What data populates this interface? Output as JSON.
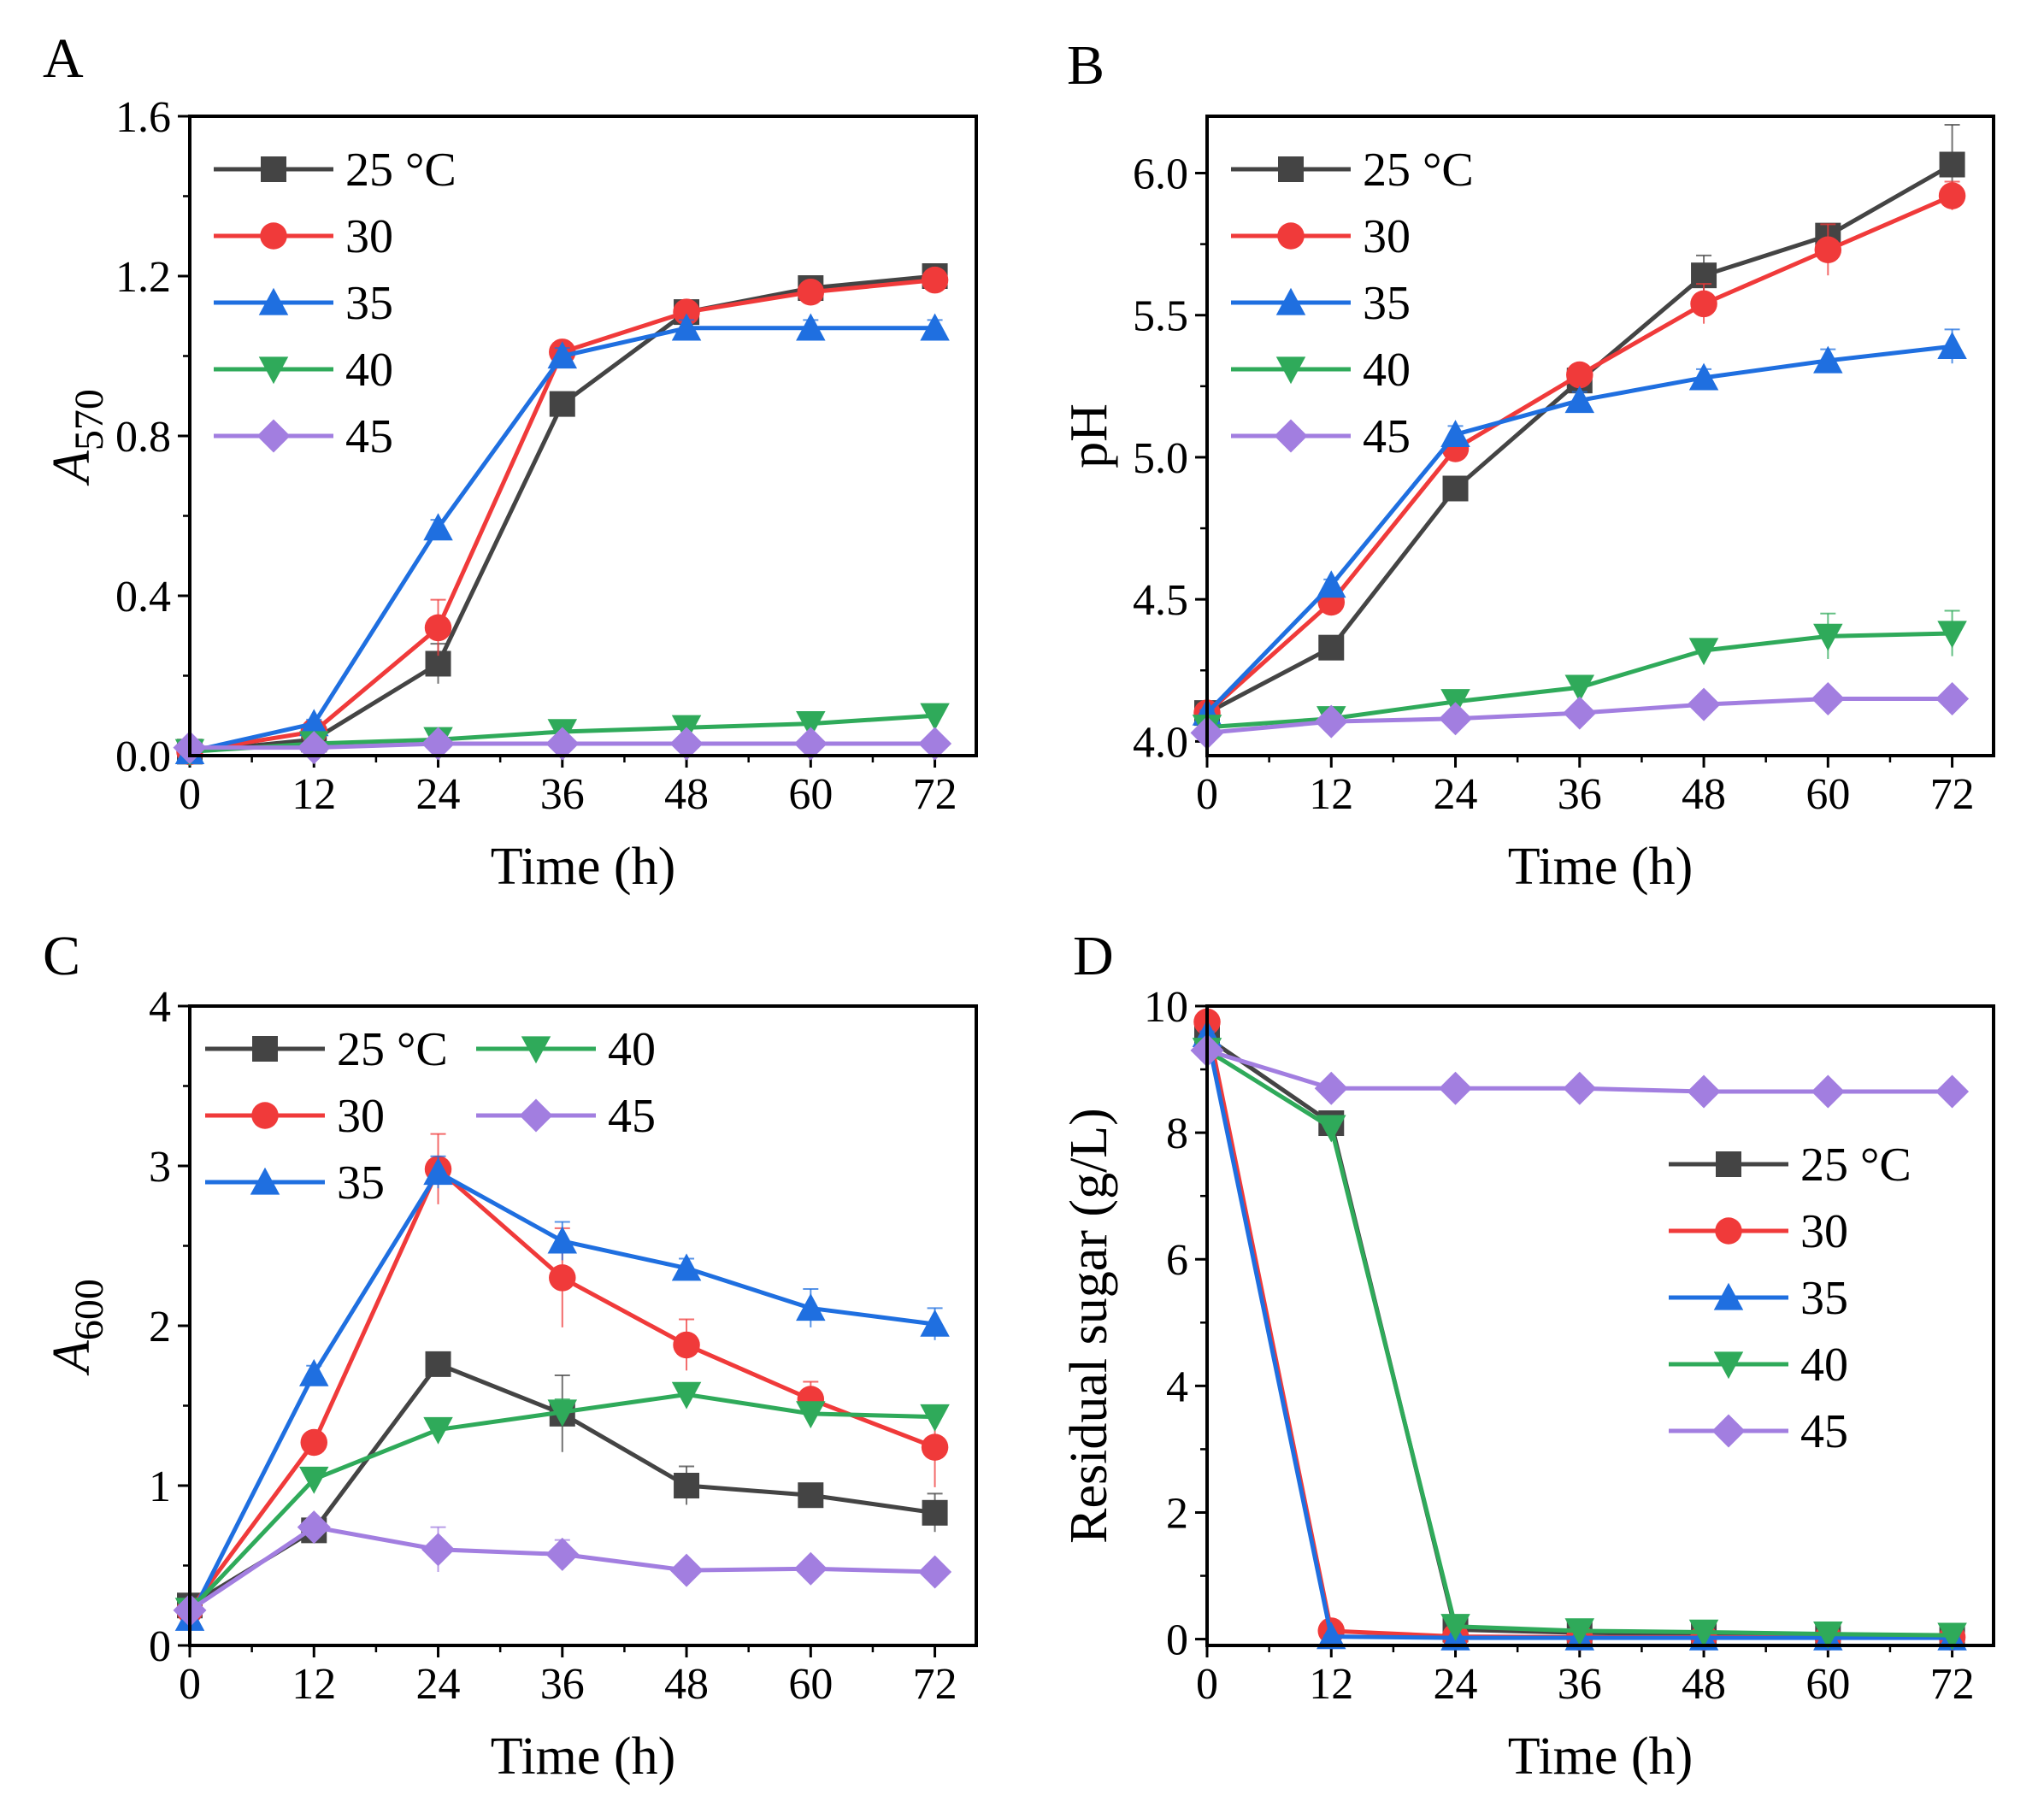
{
  "figure": {
    "panel_labels": [
      "A",
      "B",
      "C",
      "D"
    ],
    "series_colors": [
      "#444444",
      "#f03a3a",
      "#1f6fe0",
      "#2faa5a",
      "#a27ee0"
    ],
    "series_markers": [
      "square",
      "circle",
      "triangle-up",
      "triangle-down",
      "diamond"
    ]
  },
  "chart_data": [
    {
      "panel": "A",
      "type": "line",
      "title": "",
      "xlabel": "Time (h)",
      "ylabel": "A",
      "ylabel_sub": "570",
      "x": [
        0,
        12,
        24,
        36,
        48,
        60,
        72
      ],
      "xticks": [
        0,
        12,
        24,
        36,
        48,
        60,
        72
      ],
      "xlim": [
        0,
        76
      ],
      "yticks": [
        0.0,
        0.4,
        0.8,
        1.2,
        1.6
      ],
      "ytick_labels": [
        "0.0",
        "0.4",
        "0.8",
        "1.2",
        "1.6"
      ],
      "ylim": [
        0,
        1.6
      ],
      "legend": {
        "placement": "top-left",
        "columns": 1
      },
      "series": [
        {
          "name": "25 °C",
          "values": [
            0.01,
            0.04,
            0.23,
            0.88,
            1.11,
            1.17,
            1.2
          ],
          "errors": [
            0.01,
            0.01,
            0.05,
            0.02,
            0.02,
            0.02,
            0.02
          ]
        },
        {
          "name": "30",
          "values": [
            0.01,
            0.06,
            0.32,
            1.01,
            1.11,
            1.16,
            1.19
          ],
          "errors": [
            0.01,
            0.01,
            0.07,
            0.02,
            0.02,
            0.02,
            0.02
          ]
        },
        {
          "name": "35",
          "values": [
            0.01,
            0.08,
            0.57,
            1.0,
            1.07,
            1.07,
            1.07
          ],
          "errors": [
            0.01,
            0.01,
            0.02,
            0.02,
            0.02,
            0.02,
            0.02
          ]
        },
        {
          "name": "40",
          "values": [
            0.01,
            0.03,
            0.04,
            0.06,
            0.07,
            0.08,
            0.1
          ],
          "errors": [
            0.01,
            0.01,
            0.01,
            0.01,
            0.01,
            0.01,
            0.01
          ]
        },
        {
          "name": "45",
          "values": [
            0.02,
            0.02,
            0.03,
            0.03,
            0.03,
            0.03,
            0.03
          ],
          "errors": [
            0.01,
            0.01,
            0.01,
            0.01,
            0.01,
            0.01,
            0.01
          ]
        }
      ]
    },
    {
      "panel": "B",
      "type": "line",
      "title": "",
      "xlabel": "Time (h)",
      "ylabel": "pH",
      "ylabel_sub": "",
      "x": [
        0,
        12,
        24,
        36,
        48,
        60,
        72
      ],
      "xticks": [
        0,
        12,
        24,
        36,
        48,
        60,
        72
      ],
      "xlim": [
        0,
        76
      ],
      "yticks": [
        4.0,
        4.5,
        5.0,
        5.5,
        6.0
      ],
      "ytick_labels": [
        "4.0",
        "4.5",
        "5.0",
        "5.5",
        "6.0"
      ],
      "ylim": [
        3.95,
        6.2
      ],
      "legend": {
        "placement": "top-left",
        "columns": 1
      },
      "series": [
        {
          "name": "25 °C",
          "values": [
            4.1,
            4.33,
            4.89,
            5.27,
            5.64,
            5.78,
            6.03
          ],
          "errors": [
            0.01,
            0.02,
            0.03,
            0.03,
            0.07,
            0.04,
            0.14
          ]
        },
        {
          "name": "30",
          "values": [
            4.1,
            4.49,
            5.03,
            5.29,
            5.54,
            5.73,
            5.92
          ],
          "errors": [
            0.01,
            0.02,
            0.03,
            0.03,
            0.07,
            0.09,
            0.05
          ]
        },
        {
          "name": "35",
          "values": [
            4.1,
            4.55,
            5.08,
            5.2,
            5.28,
            5.34,
            5.39
          ],
          "errors": [
            0.01,
            0.02,
            0.03,
            0.03,
            0.03,
            0.04,
            0.06
          ]
        },
        {
          "name": "40",
          "values": [
            4.05,
            4.08,
            4.14,
            4.19,
            4.32,
            4.37,
            4.38
          ],
          "errors": [
            0.01,
            0.01,
            0.02,
            0.02,
            0.02,
            0.08,
            0.08
          ]
        },
        {
          "name": "45",
          "values": [
            4.03,
            4.07,
            4.08,
            4.1,
            4.13,
            4.15,
            4.15
          ],
          "errors": [
            0.01,
            0.01,
            0.01,
            0.01,
            0.01,
            0.01,
            0.01
          ]
        }
      ]
    },
    {
      "panel": "C",
      "type": "line",
      "title": "",
      "xlabel": "Time (h)",
      "ylabel": "A",
      "ylabel_sub": "600",
      "x": [
        0,
        12,
        24,
        36,
        48,
        60,
        72
      ],
      "xticks": [
        0,
        12,
        24,
        36,
        48,
        60,
        72
      ],
      "xlim": [
        0,
        76
      ],
      "yticks": [
        0,
        1,
        2,
        3,
        4
      ],
      "ytick_labels": [
        "0",
        "1",
        "2",
        "3",
        "4"
      ],
      "ylim": [
        0,
        4
      ],
      "legend": {
        "placement": "top-left",
        "columns": 2
      },
      "series": [
        {
          "name": "25 °C",
          "values": [
            0.25,
            0.72,
            1.76,
            1.45,
            1.0,
            0.94,
            0.83
          ],
          "errors": [
            0.03,
            0.03,
            0.05,
            0.24,
            0.12,
            0.05,
            0.12
          ]
        },
        {
          "name": "30",
          "values": [
            0.22,
            1.27,
            2.98,
            2.3,
            1.88,
            1.54,
            1.24
          ],
          "errors": [
            0.03,
            0.05,
            0.22,
            0.31,
            0.16,
            0.11,
            0.25
          ]
        },
        {
          "name": "35",
          "values": [
            0.17,
            1.7,
            2.96,
            2.53,
            2.36,
            2.11,
            2.01
          ],
          "errors": [
            0.03,
            0.05,
            0.1,
            0.12,
            0.06,
            0.12,
            0.1
          ]
        },
        {
          "name": "40",
          "values": [
            0.22,
            1.04,
            1.35,
            1.46,
            1.57,
            1.45,
            1.43
          ],
          "errors": [
            0.03,
            0.05,
            0.05,
            0.08,
            0.05,
            0.05,
            0.05
          ]
        },
        {
          "name": "45",
          "values": [
            0.22,
            0.74,
            0.6,
            0.57,
            0.47,
            0.48,
            0.46
          ],
          "errors": [
            0.03,
            0.03,
            0.14,
            0.09,
            0.03,
            0.03,
            0.03
          ]
        }
      ]
    },
    {
      "panel": "D",
      "type": "line",
      "title": "",
      "xlabel": "Time (h)",
      "ylabel": "Residual sugar (g/L)",
      "ylabel_sub": "",
      "x": [
        0,
        12,
        24,
        36,
        48,
        60,
        72
      ],
      "xticks": [
        0,
        12,
        24,
        36,
        48,
        60,
        72
      ],
      "xlim": [
        0,
        76
      ],
      "yticks": [
        0,
        2,
        4,
        6,
        8,
        10
      ],
      "ytick_labels": [
        "0",
        "2",
        "4",
        "6",
        "8",
        "10"
      ],
      "ylim": [
        -0.1,
        10
      ],
      "legend": {
        "placement": "center-right",
        "columns": 1
      },
      "series": [
        {
          "name": "25 °C",
          "values": [
            9.5,
            8.15,
            0.15,
            0.1,
            0.08,
            0.06,
            0.04
          ],
          "errors": [
            0.05,
            0.05,
            0.03,
            0.03,
            0.03,
            0.03,
            0.03
          ]
        },
        {
          "name": "30",
          "values": [
            9.75,
            0.13,
            0.04,
            0.03,
            0.03,
            0.03,
            0.03
          ],
          "errors": [
            0.05,
            0.03,
            0.02,
            0.02,
            0.02,
            0.02,
            0.02
          ]
        },
        {
          "name": "35",
          "values": [
            9.55,
            0.04,
            0.02,
            0.02,
            0.02,
            0.02,
            0.02
          ],
          "errors": [
            0.05,
            0.02,
            0.02,
            0.02,
            0.02,
            0.02,
            0.02
          ]
        },
        {
          "name": "40",
          "values": [
            9.3,
            8.08,
            0.2,
            0.13,
            0.11,
            0.08,
            0.06
          ],
          "errors": [
            0.05,
            0.05,
            0.03,
            0.03,
            0.03,
            0.03,
            0.03
          ]
        },
        {
          "name": "45",
          "values": [
            9.3,
            8.7,
            8.7,
            8.7,
            8.65,
            8.65,
            8.65
          ],
          "errors": [
            0.05,
            0.05,
            0.05,
            0.05,
            0.05,
            0.05,
            0.05
          ]
        }
      ]
    }
  ]
}
